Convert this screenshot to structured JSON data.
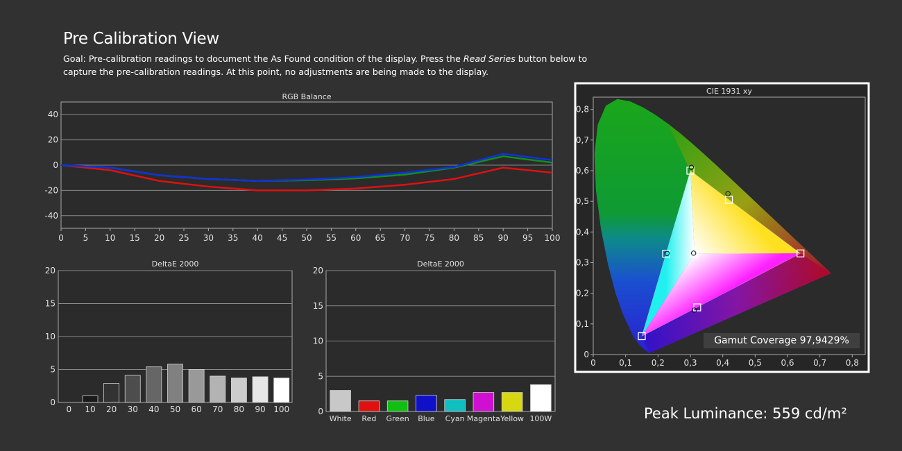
{
  "page": {
    "title": "Pre Calibration View",
    "goal_pre": "Goal: Pre-calibration readings to document the As Found condition of the display. Press the ",
    "goal_italic": "Read Series",
    "goal_post": " button below to capture the pre-calibration readings. At this point, no adjustments are being made to the display.",
    "peak_luminance": "Peak Luminance: 559 cd/m²"
  },
  "chart_data": [
    {
      "type": "line",
      "title": "RGB Balance",
      "x": [
        0,
        10,
        20,
        30,
        40,
        50,
        60,
        70,
        80,
        90,
        100
      ],
      "x_ticks": [
        "0",
        "5",
        "10",
        "15",
        "20",
        "25",
        "30",
        "35",
        "40",
        "45",
        "50",
        "55",
        "60",
        "65",
        "70",
        "75",
        "80",
        "85",
        "90",
        "95",
        "100"
      ],
      "y_ticks": [
        "40",
        "20",
        "0",
        "-20",
        "-40"
      ],
      "ylim": [
        -50,
        50
      ],
      "grid": true,
      "series": [
        {
          "color": "#e01010",
          "values": [
            0,
            -4,
            -12.5,
            -17,
            -20,
            -20,
            -18.5,
            -15.5,
            -11,
            -2,
            -6
          ]
        },
        {
          "color": "#10901a",
          "values": [
            0,
            -2,
            -8,
            -11,
            -12.5,
            -12,
            -10.5,
            -7.5,
            -2,
            7,
            2
          ]
        },
        {
          "color": "#1030e0",
          "values": [
            0,
            -2,
            -8,
            -11,
            -12.5,
            -11.5,
            -9.5,
            -6,
            -1.5,
            9,
            4
          ]
        }
      ]
    },
    {
      "type": "bar",
      "title": "DeltaE 2000",
      "categories": [
        "0",
        "10",
        "20",
        "30",
        "40",
        "50",
        "60",
        "70",
        "80",
        "90",
        "100"
      ],
      "values": [
        0,
        1,
        2.9,
        4.1,
        5.4,
        5.8,
        5.0,
        4.0,
        3.7,
        3.9,
        3.7
      ],
      "colors": [
        "#000000",
        "#1a1a1a",
        "#333333",
        "#4d4d4d",
        "#666666",
        "#808080",
        "#999999",
        "#b3b3b3",
        "#cccccc",
        "#e6e6e6",
        "#ffffff"
      ],
      "y_ticks": [
        "20",
        "15",
        "10",
        "5",
        "0"
      ],
      "ylim": [
        0,
        20
      ],
      "grid": true
    },
    {
      "type": "bar",
      "title": "DeltaE 2000",
      "categories": [
        "White",
        "Red",
        "Green",
        "Blue",
        "Cyan",
        "Magenta",
        "Yellow",
        "100W"
      ],
      "values": [
        3.0,
        1.5,
        1.5,
        2.3,
        1.7,
        2.7,
        2.7,
        3.8
      ],
      "colors": [
        "#c8c8c8",
        "#e01010",
        "#10c010",
        "#1010c8",
        "#10c0c0",
        "#d010d0",
        "#d8d810",
        "#ffffff"
      ],
      "y_ticks": [
        "20",
        "15",
        "10",
        "5",
        "0"
      ],
      "ylim": [
        0,
        20
      ],
      "grid": true
    },
    {
      "type": "scatter",
      "title": "CIE 1931 xy",
      "x_ticks": [
        "0",
        "0,1",
        "0,2",
        "0,3",
        "0,4",
        "0,5",
        "0,6",
        "0,7",
        "0,8"
      ],
      "y_ticks": [
        "0,8",
        "0,7",
        "0,6",
        "0,5",
        "0,4",
        "0,3",
        "0,2",
        "0,1",
        "0"
      ],
      "xlim": [
        0,
        0.84
      ],
      "ylim": [
        0,
        0.84
      ],
      "gamut_coverage": "Gamut Coverage 97,9429%",
      "targets": [
        {
          "name": "red",
          "x": 0.64,
          "y": 0.33
        },
        {
          "name": "green",
          "x": 0.3,
          "y": 0.6
        },
        {
          "name": "blue",
          "x": 0.15,
          "y": 0.06
        },
        {
          "name": "cyan",
          "x": 0.225,
          "y": 0.329
        },
        {
          "name": "magenta",
          "x": 0.321,
          "y": 0.154
        },
        {
          "name": "yellow",
          "x": 0.419,
          "y": 0.505
        },
        {
          "name": "white",
          "x": 0.3127,
          "y": 0.329
        }
      ],
      "measured": [
        {
          "name": "green",
          "x": 0.303,
          "y": 0.611
        },
        {
          "name": "cyan",
          "x": 0.228,
          "y": 0.33
        },
        {
          "name": "yellow",
          "x": 0.416,
          "y": 0.525
        },
        {
          "name": "white",
          "x": 0.31,
          "y": 0.331
        },
        {
          "name": "magenta",
          "x": 0.312,
          "y": 0.145
        }
      ]
    }
  ]
}
